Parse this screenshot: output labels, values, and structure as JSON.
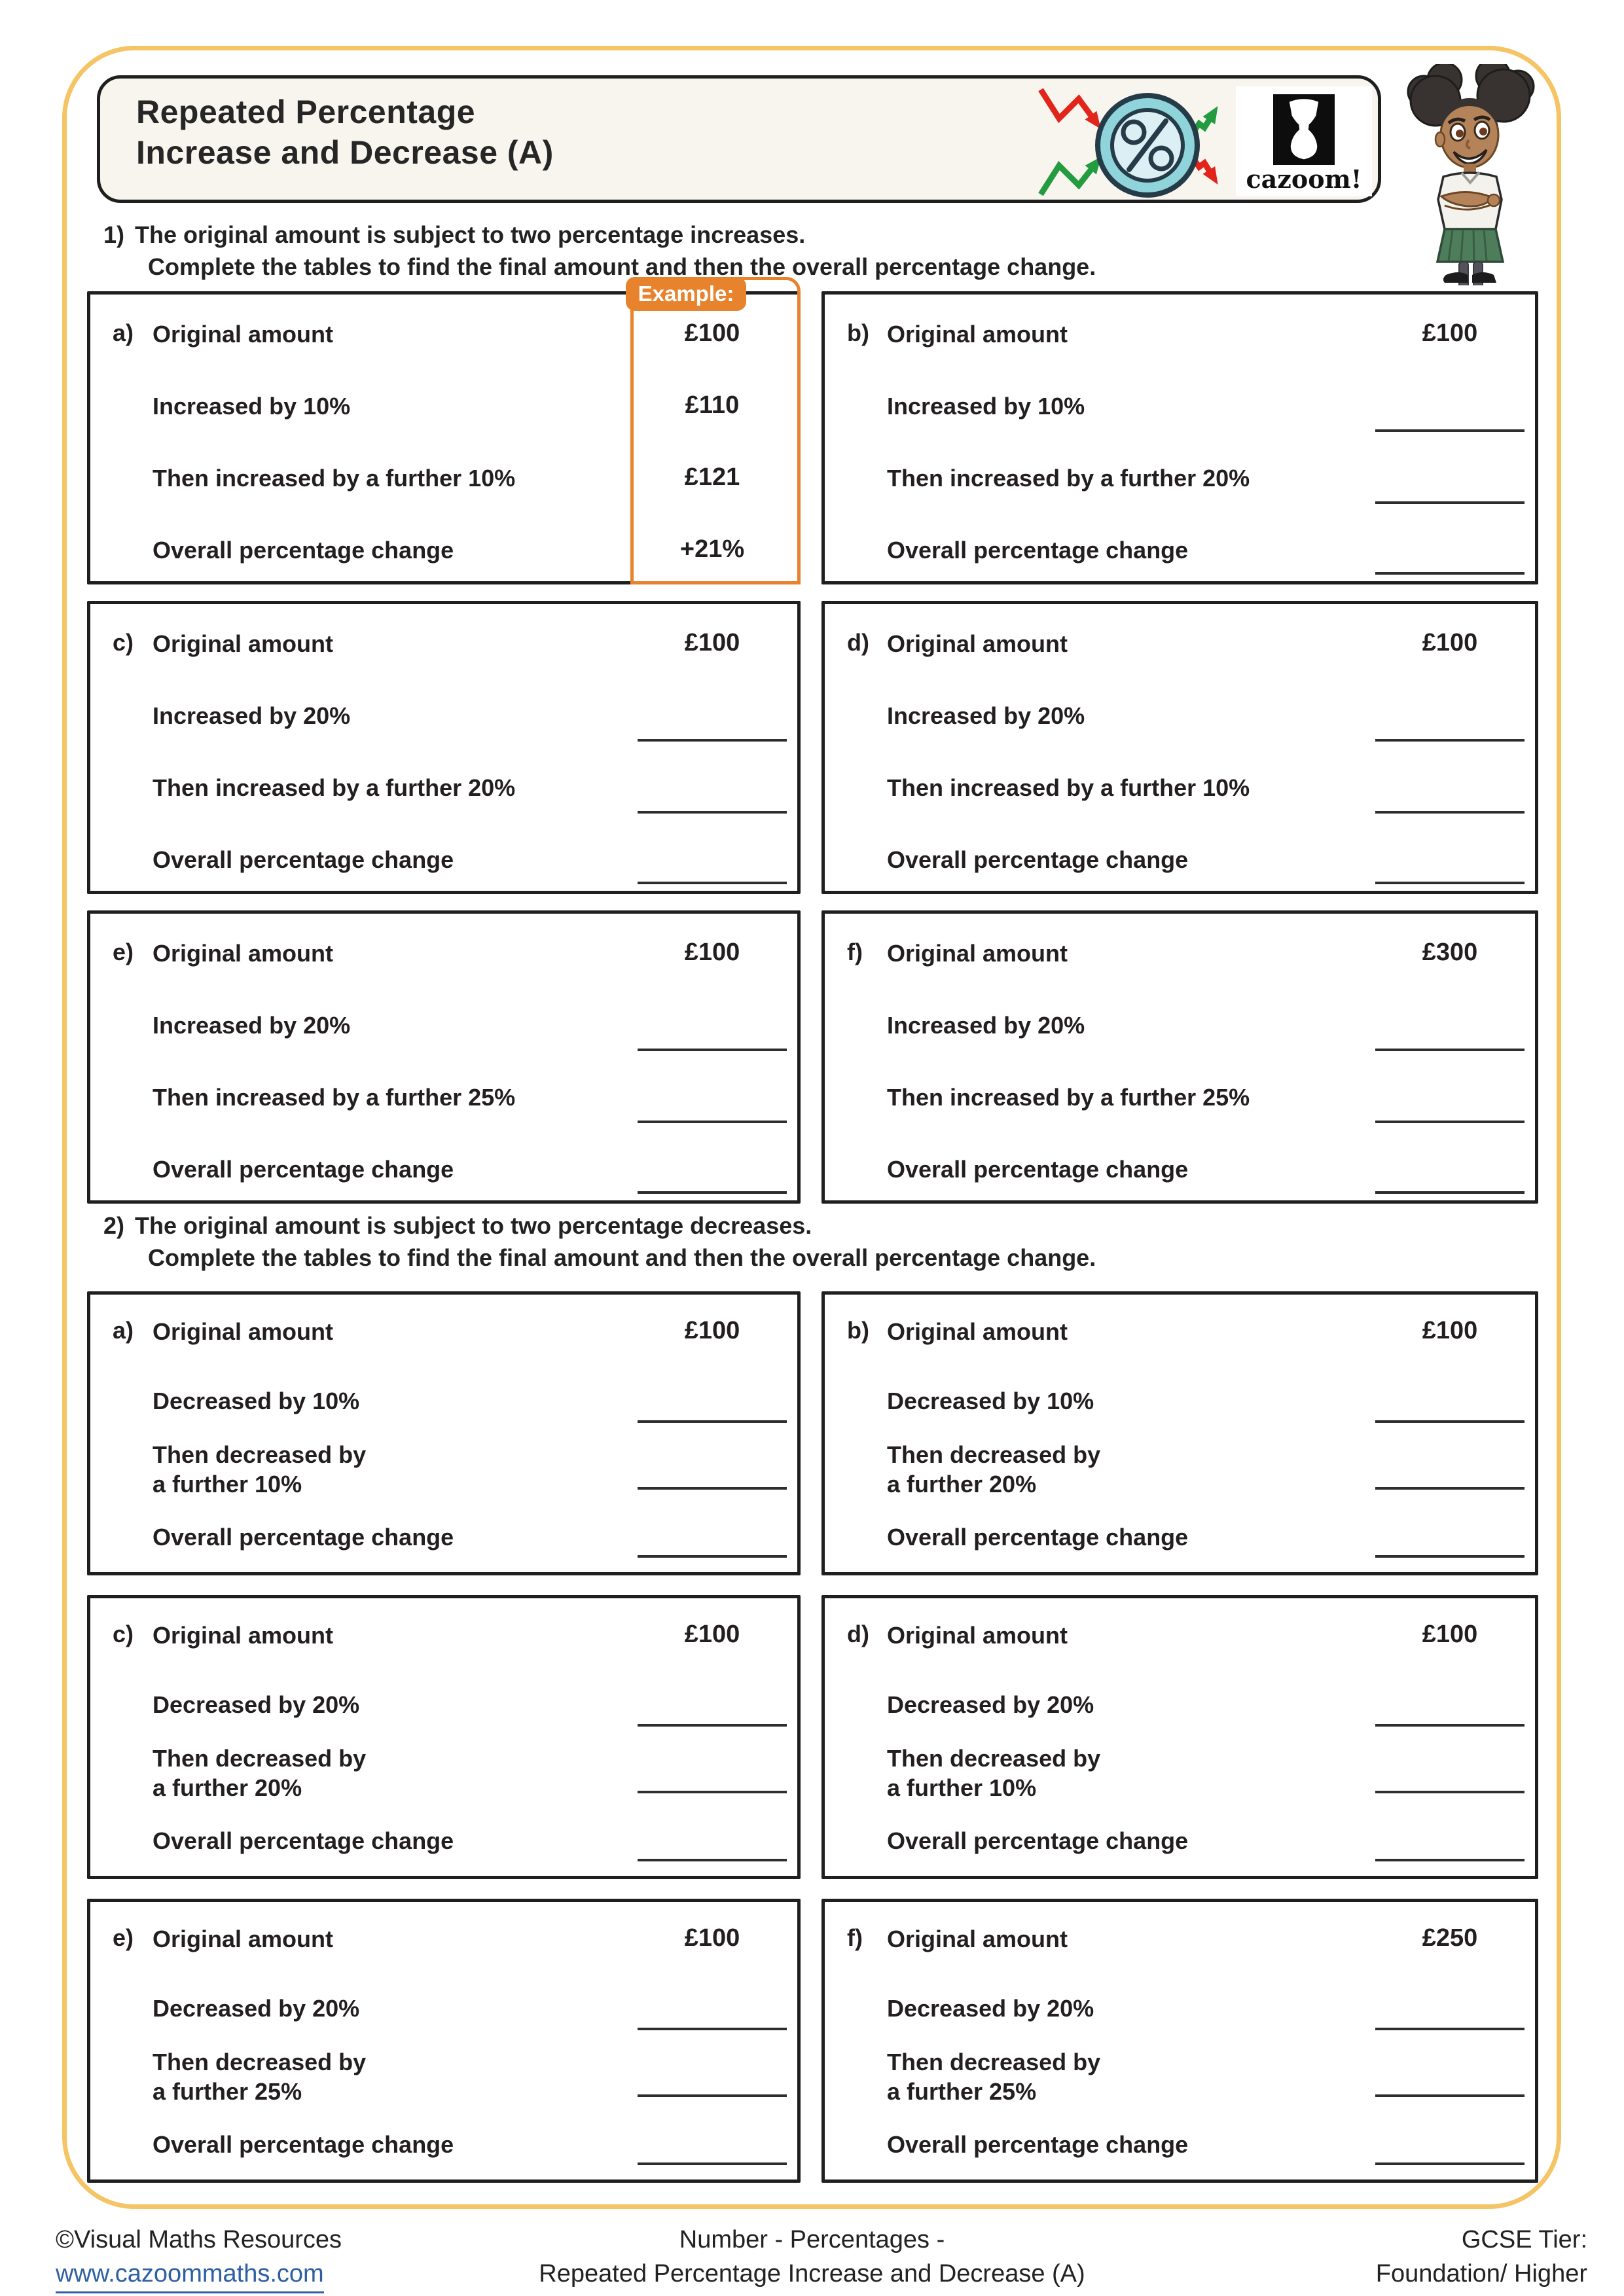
{
  "header": {
    "title_line1": "Repeated Percentage",
    "title_line2": "Increase and Decrease (A)",
    "logo_text": "cazoom!"
  },
  "questions": [
    {
      "number": "1)",
      "line1": "The original amount is subject to two percentage increases.",
      "line2": "Complete the tables to find the final amount and then the overall percentage change.",
      "example_label": "Example:",
      "boxes": [
        {
          "letter": "a)",
          "example": true,
          "rows": [
            [
              "Original amount",
              "£100"
            ],
            [
              "Increased by 10%",
              "£110"
            ],
            [
              "Then increased by a further 10%",
              "£121"
            ],
            [
              "Overall percentage change",
              "+21%"
            ]
          ]
        },
        {
          "letter": "b)",
          "rows": [
            [
              "Original amount",
              "£100"
            ],
            [
              "Increased by 10%",
              null
            ],
            [
              "Then increased by a further 20%",
              null
            ],
            [
              "Overall percentage change",
              null
            ]
          ]
        },
        {
          "letter": "c)",
          "rows": [
            [
              "Original amount",
              "£100"
            ],
            [
              "Increased by 20%",
              null
            ],
            [
              "Then increased by a further 20%",
              null
            ],
            [
              "Overall percentage change",
              null
            ]
          ]
        },
        {
          "letter": "d)",
          "rows": [
            [
              "Original amount",
              "£100"
            ],
            [
              "Increased by 20%",
              null
            ],
            [
              "Then increased by a further 10%",
              null
            ],
            [
              "Overall percentage change",
              null
            ]
          ]
        },
        {
          "letter": "e)",
          "rows": [
            [
              "Original amount",
              "£100"
            ],
            [
              "Increased by 20%",
              null
            ],
            [
              "Then increased by a further 25%",
              null
            ],
            [
              "Overall percentage change",
              null
            ]
          ]
        },
        {
          "letter": "f)",
          "rows": [
            [
              "Original amount",
              "£300"
            ],
            [
              "Increased by 20%",
              null
            ],
            [
              "Then increased by a further 25%",
              null
            ],
            [
              "Overall percentage change",
              null
            ]
          ]
        }
      ]
    },
    {
      "number": "2)",
      "line1": "The original amount is subject to two percentage decreases.",
      "line2": "Complete the tables to find the final amount and then the overall percentage change.",
      "boxes": [
        {
          "letter": "a)",
          "rows": [
            [
              "Original amount",
              "£100"
            ],
            [
              "Decreased by 10%",
              null
            ],
            [
              "Then decreased by\na further 10%",
              null
            ],
            [
              "Overall percentage change",
              null
            ]
          ]
        },
        {
          "letter": "b)",
          "rows": [
            [
              "Original amount",
              "£100"
            ],
            [
              "Decreased by 10%",
              null
            ],
            [
              "Then decreased by\na further 20%",
              null
            ],
            [
              "Overall percentage change",
              null
            ]
          ]
        },
        {
          "letter": "c)",
          "rows": [
            [
              "Original amount",
              "£100"
            ],
            [
              "Decreased by 20%",
              null
            ],
            [
              "Then decreased by\na further 20%",
              null
            ],
            [
              "Overall percentage change",
              null
            ]
          ]
        },
        {
          "letter": "d)",
          "rows": [
            [
              "Original amount",
              "£100"
            ],
            [
              "Decreased by 20%",
              null
            ],
            [
              "Then decreased by\na further 10%",
              null
            ],
            [
              "Overall percentage change",
              null
            ]
          ]
        },
        {
          "letter": "e)",
          "rows": [
            [
              "Original amount",
              "£100"
            ],
            [
              "Decreased by 20%",
              null
            ],
            [
              "Then decreased by\na further 25%",
              null
            ],
            [
              "Overall percentage change",
              null
            ]
          ]
        },
        {
          "letter": "f)",
          "rows": [
            [
              "Original amount",
              "£250"
            ],
            [
              "Decreased by 20%",
              null
            ],
            [
              "Then decreased by\na further 25%",
              null
            ],
            [
              "Overall percentage change",
              null
            ]
          ]
        }
      ]
    }
  ],
  "footer": {
    "left_line1": "©Visual Maths Resources",
    "left_line2": "www.cazoommaths.com",
    "center_line1": "Number - Percentages -",
    "center_line2": "Repeated Percentage Increase and Decrease (A)",
    "right_line1": "GCSE Tier:",
    "right_line2": "Foundation/ Higher"
  },
  "colors": {
    "frame_gold": "#F4C465",
    "example_orange": "#E8832D",
    "link_blue": "#2E5FA3",
    "icon_teal_ring": "#8FD3DB",
    "icon_teal_inner": "#DCEFF4",
    "icon_outline_navy": "#253C48",
    "arrow_red": "#E1251B",
    "arrow_green": "#239B3F",
    "header_cream": "#F7F5EE"
  }
}
